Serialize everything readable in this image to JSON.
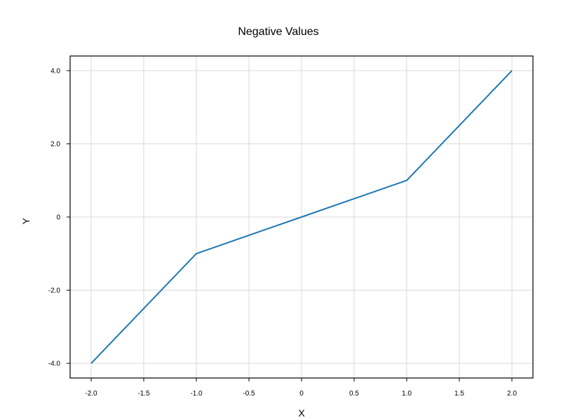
{
  "chart_data": {
    "type": "line",
    "title": "Negative Values",
    "xlabel": "X",
    "ylabel": "Y",
    "xlim": [
      -2.2,
      2.2
    ],
    "ylim": [
      -4.4,
      4.4
    ],
    "x_ticks": [
      -2.0,
      -1.5,
      -1.0,
      -0.5,
      0,
      0.5,
      1.0,
      1.5,
      2.0
    ],
    "x_tick_labels": [
      "-2.0",
      "-1.5",
      "-1.0",
      "-0.5",
      "0",
      "0.5",
      "1.0",
      "1.5",
      "2.0"
    ],
    "y_ticks": [
      -4.0,
      -2.0,
      0,
      2.0,
      4.0
    ],
    "y_tick_labels": [
      "-4.0",
      "-2.0",
      "0",
      "2.0",
      "4.0"
    ],
    "grid": true,
    "series": [
      {
        "color": "#1f77b4",
        "x": [
          -2,
          -1,
          0,
          1,
          2
        ],
        "y": [
          -4,
          -1,
          0,
          1,
          4
        ]
      }
    ]
  }
}
